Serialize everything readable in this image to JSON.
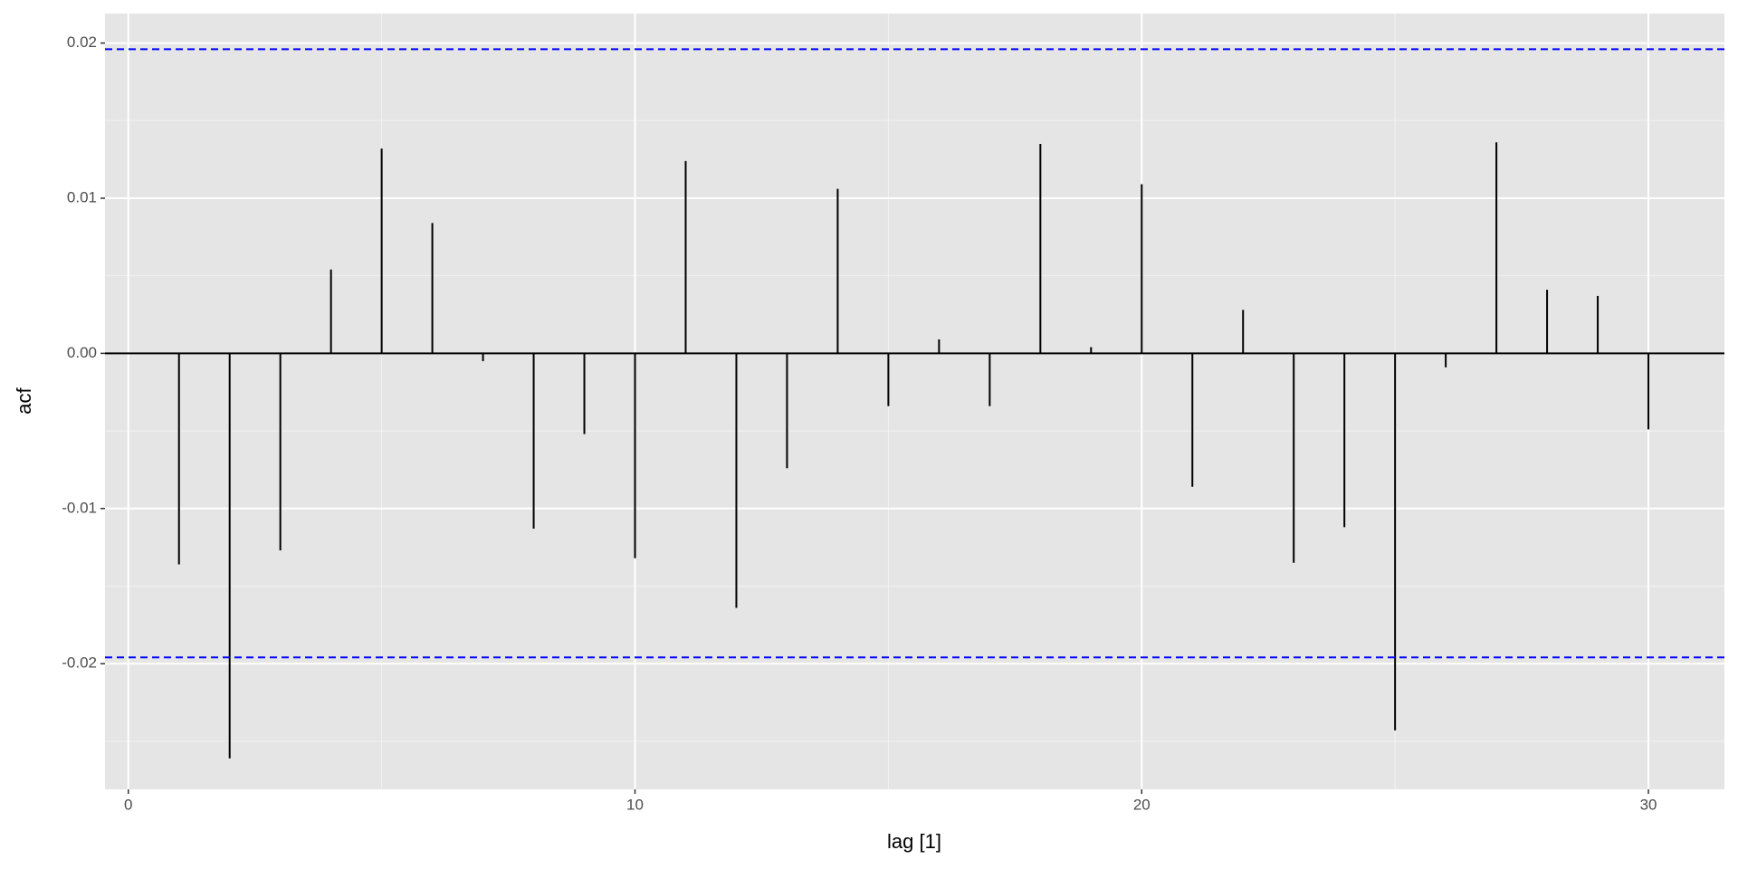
{
  "chart_data": {
    "type": "stem",
    "x_label": "lag [1]",
    "y_label": "acf",
    "x": [
      1,
      2,
      3,
      4,
      5,
      6,
      7,
      8,
      9,
      10,
      11,
      12,
      13,
      14,
      15,
      16,
      17,
      18,
      19,
      20,
      21,
      22,
      23,
      24,
      25,
      26,
      27,
      28,
      29,
      30
    ],
    "values": [
      -0.0136,
      -0.0261,
      -0.0127,
      0.0054,
      0.0132,
      0.0084,
      -0.0005,
      -0.0113,
      -0.0052,
      -0.0132,
      0.0124,
      -0.0164,
      -0.0074,
      0.0106,
      -0.0034,
      0.0009,
      -0.0034,
      0.0135,
      0.0004,
      0.0109,
      -0.0086,
      0.0028,
      -0.0135,
      -0.0112,
      -0.0243,
      -0.0009,
      0.0136,
      0.0041,
      0.0037,
      -0.0049
    ],
    "color": "#000000",
    "conf_limits": [
      0.0196,
      -0.0196
    ],
    "conf_color": "#0000ff",
    "xlim": [
      -0.46,
      31.5
    ],
    "xticks": [
      0,
      10,
      20,
      30
    ],
    "ylim": [
      -0.0281,
      0.0219
    ],
    "yticks": [
      {
        "value": -0.02,
        "label": "-0.02"
      },
      {
        "value": -0.01,
        "label": "-0.01"
      },
      {
        "value": 0,
        "label": "0.00"
      },
      {
        "value": 0.01,
        "label": "0.01"
      },
      {
        "value": 0.02,
        "label": "0.02"
      }
    ],
    "grid": true
  }
}
